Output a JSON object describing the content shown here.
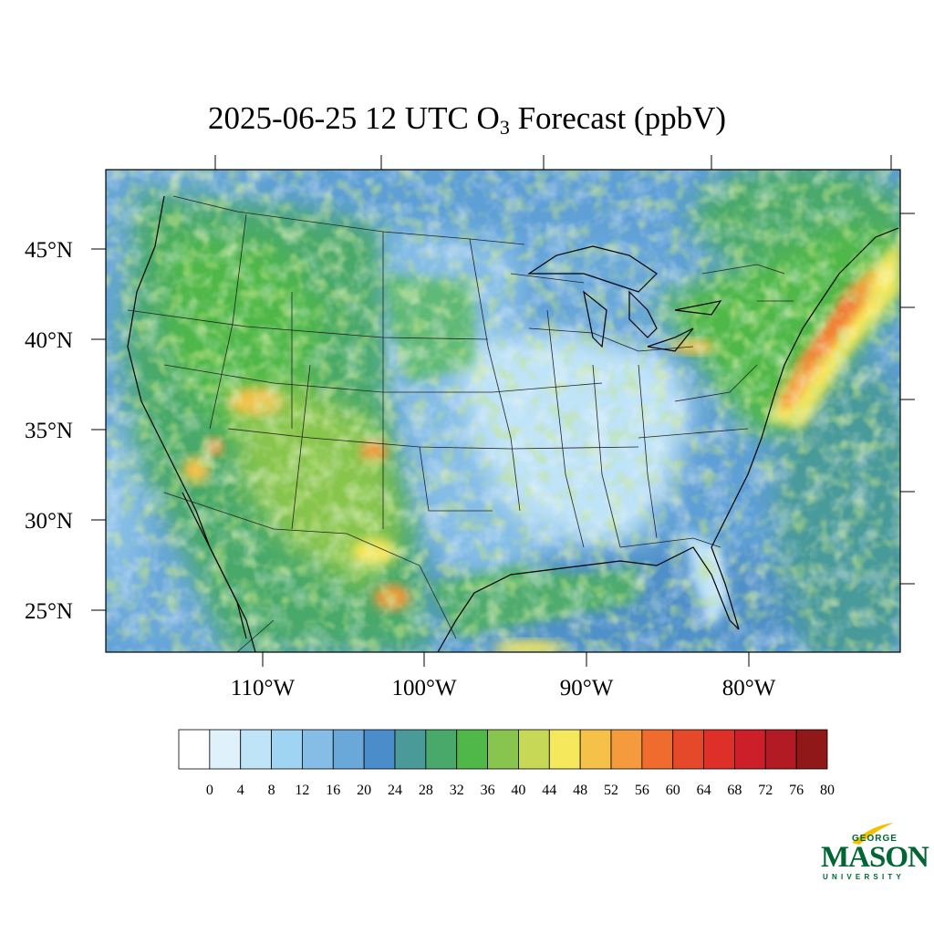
{
  "title": {
    "prefix": "2025-06-25 12 UTC O",
    "subscript": "3",
    "suffix": " Forecast (ppbV)"
  },
  "map": {
    "region": "Contiguous United States",
    "projection": "Lambert Conformal",
    "variable": "O3",
    "units": "ppbV",
    "latitude_labels": [
      "45°N",
      "40°N",
      "35°N",
      "30°N",
      "25°N"
    ],
    "longitude_labels": [
      "110°W",
      "100°W",
      "90°W",
      "80°W"
    ]
  },
  "colorbar": {
    "labels": [
      "0",
      "4",
      "8",
      "12",
      "16",
      "20",
      "24",
      "28",
      "32",
      "36",
      "40",
      "44",
      "48",
      "52",
      "56",
      "60",
      "64",
      "68",
      "72",
      "76",
      "80"
    ],
    "colors": [
      "#ffffff",
      "#dff1fb",
      "#bfe3f7",
      "#9fd5f3",
      "#85bde6",
      "#6aa8da",
      "#4b8ccb",
      "#4a9a9a",
      "#48a96b",
      "#4fb848",
      "#88c54e",
      "#c6d855",
      "#f6e85c",
      "#f5c148",
      "#f59a3d",
      "#f06c2e",
      "#e6492a",
      "#de2f28",
      "#cc1f2a",
      "#b31b24",
      "#901818"
    ]
  },
  "logo": {
    "line1": "GEORGE",
    "line2": "MASON",
    "line3": "UNIVERSITY",
    "color": "#006633",
    "accent": "#f2c200"
  }
}
